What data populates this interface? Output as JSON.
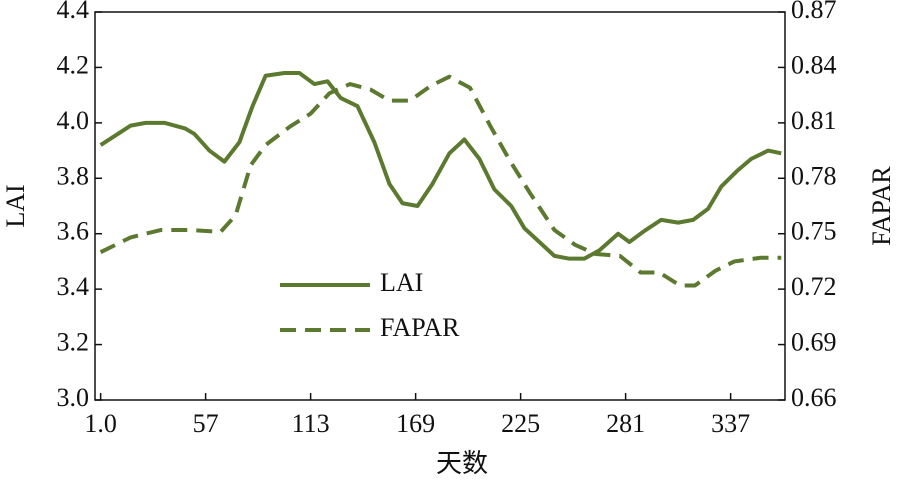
{
  "chart_data": {
    "type": "line",
    "xlabel": "天数",
    "ylabel": "LAI",
    "y2label": "FAPAR",
    "xlim": [
      -2,
      366
    ],
    "xticks": [
      {
        "value": 1,
        "label": "1.0"
      },
      57,
      113,
      169,
      225,
      281,
      337
    ],
    "ylim": [
      3.0,
      4.4
    ],
    "yticks": [
      {
        "value": 3.0,
        "label": "3.0"
      },
      3.2,
      3.4,
      3.6,
      3.8,
      {
        "value": 4.0,
        "label": "4.0"
      },
      4.2,
      4.4
    ],
    "y2lim": [
      0.66,
      0.87
    ],
    "y2ticks": [
      0.66,
      0.69,
      0.72,
      0.75,
      0.78,
      0.81,
      0.84,
      0.87
    ],
    "legend": "lower left",
    "series": [
      {
        "name": "LAI",
        "color": "#5b7a2f",
        "style": "solid",
        "x": [
          1,
          17,
          25,
          35,
          46,
          51,
          59,
          67,
          75,
          82,
          89,
          99,
          107,
          115,
          122,
          129,
          138,
          147,
          155,
          162,
          170,
          178,
          187,
          195,
          203,
          211,
          220,
          227,
          235,
          243,
          251,
          259,
          267,
          277,
          283,
          291,
          300,
          309,
          317,
          325,
          332,
          341,
          348,
          357,
          364
        ],
        "values": [
          3.92,
          3.99,
          4.0,
          4.0,
          3.98,
          3.96,
          3.9,
          3.86,
          3.93,
          4.06,
          4.17,
          4.18,
          4.18,
          4.14,
          4.15,
          4.09,
          4.06,
          3.93,
          3.78,
          3.71,
          3.7,
          3.78,
          3.89,
          3.94,
          3.87,
          3.76,
          3.7,
          3.62,
          3.57,
          3.52,
          3.51,
          3.51,
          3.54,
          3.6,
          3.57,
          3.61,
          3.65,
          3.64,
          3.65,
          3.69,
          3.77,
          3.83,
          3.87,
          3.9,
          3.89
        ]
      },
      {
        "name": "FAPAR",
        "color": "#5b7a2f",
        "style": "dashed",
        "axis": "y2",
        "x": [
          1,
          17,
          33,
          49,
          65,
          73,
          81,
          89,
          102,
          113,
          123,
          134,
          145,
          155,
          166,
          177,
          187,
          198,
          209,
          219,
          230,
          243,
          254,
          265,
          278,
          289,
          299,
          310,
          318,
          329,
          339,
          353,
          364
        ],
        "values": [
          0.74,
          0.748,
          0.752,
          0.752,
          0.751,
          0.76,
          0.787,
          0.798,
          0.808,
          0.815,
          0.826,
          0.831,
          0.828,
          0.822,
          0.822,
          0.83,
          0.835,
          0.829,
          0.808,
          0.79,
          0.772,
          0.752,
          0.744,
          0.739,
          0.738,
          0.729,
          0.729,
          0.722,
          0.722,
          0.73,
          0.735,
          0.737,
          0.737
        ]
      }
    ]
  }
}
